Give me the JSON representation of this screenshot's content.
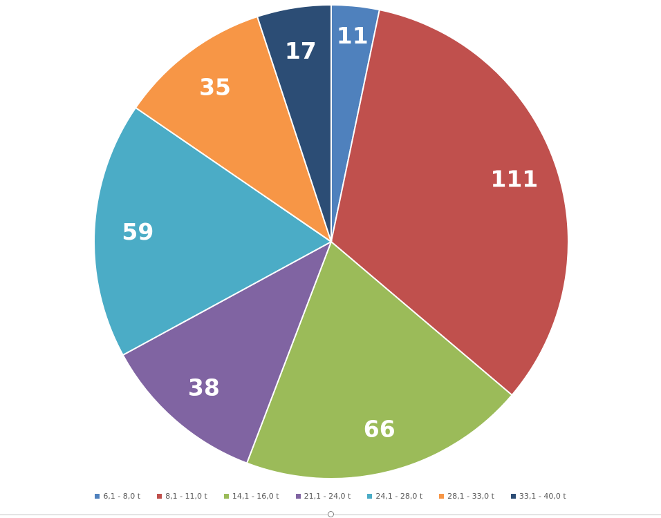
{
  "chart_data": {
    "type": "pie",
    "title": "",
    "categories": [
      "6,1 - 8,0 t",
      "8,1 - 11,0 t",
      "14,1 - 16,0 t",
      "21,1 - 24,0 t",
      "24,1 - 28,0 t",
      "28,1 - 33,0 t",
      "33,1 - 40,0 t"
    ],
    "values": [
      11,
      111,
      66,
      38,
      59,
      35,
      17
    ],
    "colors": [
      "#4F81BD",
      "#C0504D",
      "#9BBB59",
      "#8064A2",
      "#4BACC6",
      "#F79646",
      "#2C4D75"
    ],
    "start": "12 o'clock",
    "direction": "clockwise",
    "data_labels": true,
    "legend": "bottom"
  }
}
